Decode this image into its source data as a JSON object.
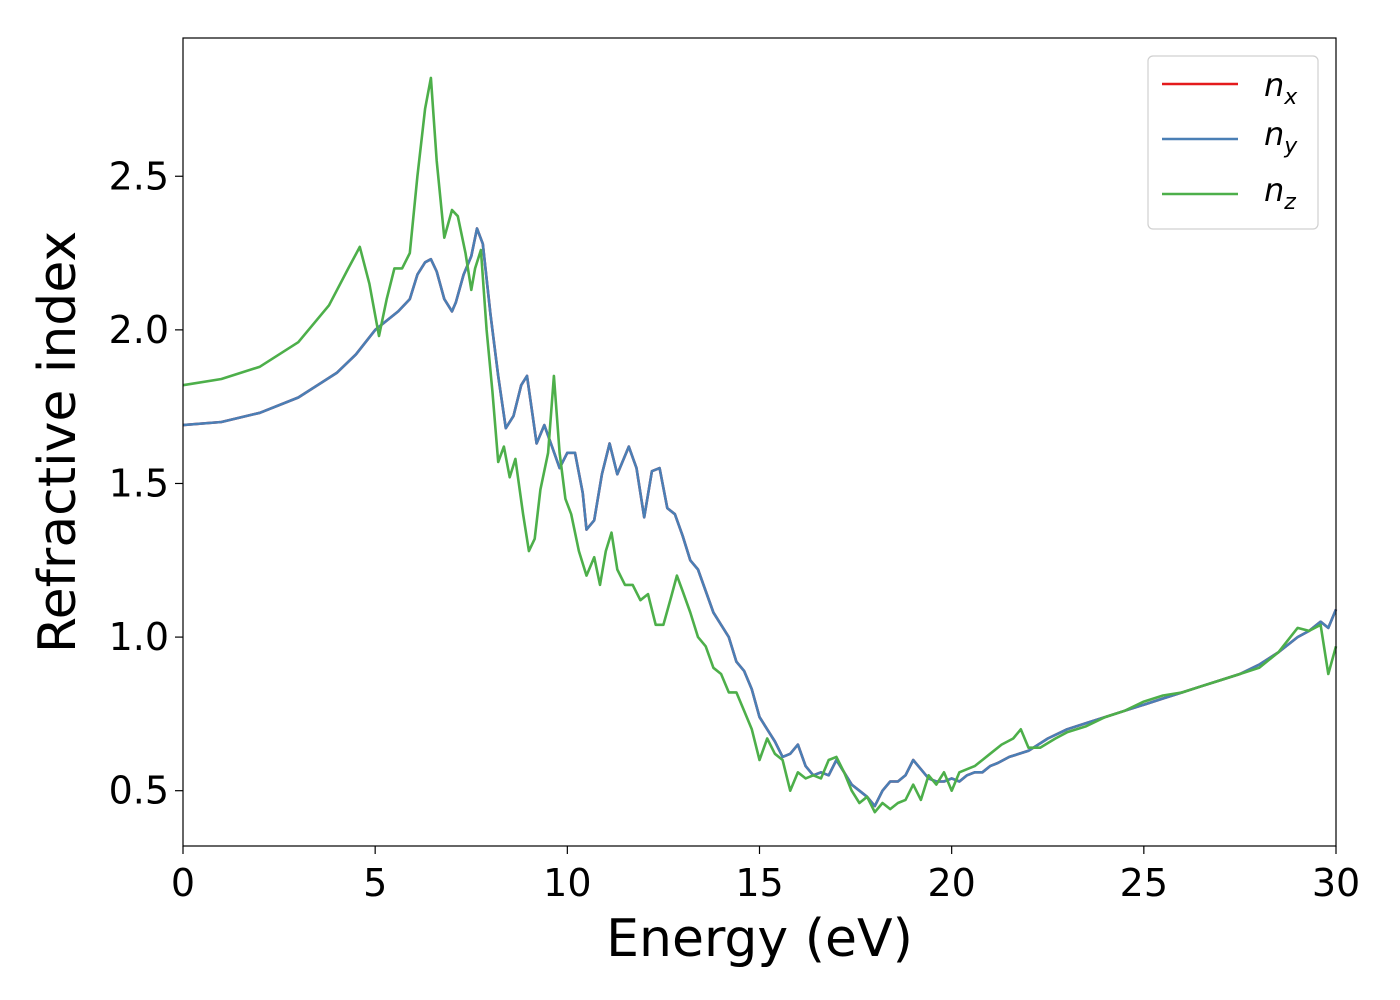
{
  "chart_data": {
    "type": "line",
    "title": "",
    "xlabel": "Energy (eV)",
    "ylabel": "Refractive index",
    "xlim": [
      0,
      30
    ],
    "ylim": [
      0.32,
      2.95
    ],
    "xticks": [
      0,
      5,
      10,
      15,
      20,
      25,
      30
    ],
    "yticks": [
      0.5,
      1.0,
      1.5,
      2.0,
      2.5
    ],
    "xtick_labels": [
      "0",
      "5",
      "10",
      "15",
      "20",
      "25",
      "30"
    ],
    "ytick_labels": [
      "0.5",
      "1.0",
      "1.5",
      "2.0",
      "2.5"
    ],
    "grid": false,
    "legend_position": "top-right",
    "legend": [
      {
        "base": "n",
        "sub": "x"
      },
      {
        "base": "n",
        "sub": "y"
      },
      {
        "base": "n",
        "sub": "z"
      }
    ],
    "series": [
      {
        "key": "nx",
        "color": "#e41a1c",
        "x": [
          0,
          1,
          2,
          3,
          4,
          4.5,
          5,
          5.3,
          5.6,
          5.9,
          6.1,
          6.3,
          6.45,
          6.6,
          6.8,
          7.0,
          7.1,
          7.3,
          7.5,
          7.65,
          7.8,
          8.0,
          8.2,
          8.4,
          8.6,
          8.8,
          8.95,
          9.1,
          9.2,
          9.4,
          9.6,
          9.8,
          10.0,
          10.2,
          10.4,
          10.5,
          10.7,
          10.9,
          11.1,
          11.3,
          11.6,
          11.8,
          12.0,
          12.2,
          12.4,
          12.6,
          12.8,
          13.0,
          13.2,
          13.4,
          13.6,
          13.8,
          14.0,
          14.2,
          14.4,
          14.6,
          14.8,
          15.0,
          15.2,
          15.4,
          15.6,
          15.8,
          16.0,
          16.2,
          16.4,
          16.6,
          16.8,
          17.0,
          17.2,
          17.4,
          17.6,
          17.8,
          18.0,
          18.2,
          18.4,
          18.6,
          18.8,
          19.0,
          19.2,
          19.4,
          19.6,
          19.8,
          20.0,
          20.2,
          20.4,
          20.6,
          20.8,
          21.0,
          21.2,
          21.5,
          22.0,
          22.5,
          23.0,
          23.5,
          24.0,
          24.5,
          25.0,
          25.5,
          26.0,
          26.5,
          27.0,
          27.5,
          28.0,
          28.5,
          29.0,
          29.3,
          29.6,
          29.8,
          30.0
        ],
        "y": [
          1.69,
          1.7,
          1.73,
          1.78,
          1.86,
          1.92,
          2.0,
          2.03,
          2.06,
          2.1,
          2.18,
          2.22,
          2.23,
          2.19,
          2.1,
          2.06,
          2.09,
          2.18,
          2.24,
          2.33,
          2.28,
          2.05,
          1.85,
          1.68,
          1.72,
          1.82,
          1.85,
          1.72,
          1.63,
          1.69,
          1.62,
          1.55,
          1.6,
          1.6,
          1.47,
          1.35,
          1.38,
          1.53,
          1.63,
          1.53,
          1.62,
          1.55,
          1.39,
          1.54,
          1.55,
          1.42,
          1.4,
          1.33,
          1.25,
          1.22,
          1.15,
          1.08,
          1.04,
          1.0,
          0.92,
          0.89,
          0.83,
          0.74,
          0.7,
          0.66,
          0.61,
          0.62,
          0.65,
          0.58,
          0.55,
          0.56,
          0.55,
          0.6,
          0.56,
          0.52,
          0.5,
          0.48,
          0.45,
          0.5,
          0.53,
          0.53,
          0.55,
          0.6,
          0.57,
          0.54,
          0.53,
          0.53,
          0.54,
          0.53,
          0.55,
          0.56,
          0.56,
          0.58,
          0.59,
          0.61,
          0.63,
          0.67,
          0.7,
          0.72,
          0.74,
          0.76,
          0.78,
          0.8,
          0.82,
          0.84,
          0.86,
          0.88,
          0.91,
          0.95,
          1.0,
          1.02,
          1.05,
          1.03,
          1.09
        ]
      },
      {
        "key": "ny",
        "color": "#4a7fb5",
        "x": [
          0,
          1,
          2,
          3,
          4,
          4.5,
          5,
          5.3,
          5.6,
          5.9,
          6.1,
          6.3,
          6.45,
          6.6,
          6.8,
          7.0,
          7.1,
          7.3,
          7.5,
          7.65,
          7.8,
          8.0,
          8.2,
          8.4,
          8.6,
          8.8,
          8.95,
          9.1,
          9.2,
          9.4,
          9.6,
          9.8,
          10.0,
          10.2,
          10.4,
          10.5,
          10.7,
          10.9,
          11.1,
          11.3,
          11.6,
          11.8,
          12.0,
          12.2,
          12.4,
          12.6,
          12.8,
          13.0,
          13.2,
          13.4,
          13.6,
          13.8,
          14.0,
          14.2,
          14.4,
          14.6,
          14.8,
          15.0,
          15.2,
          15.4,
          15.6,
          15.8,
          16.0,
          16.2,
          16.4,
          16.6,
          16.8,
          17.0,
          17.2,
          17.4,
          17.6,
          17.8,
          18.0,
          18.2,
          18.4,
          18.6,
          18.8,
          19.0,
          19.2,
          19.4,
          19.6,
          19.8,
          20.0,
          20.2,
          20.4,
          20.6,
          20.8,
          21.0,
          21.2,
          21.5,
          22.0,
          22.5,
          23.0,
          23.5,
          24.0,
          24.5,
          25.0,
          25.5,
          26.0,
          26.5,
          27.0,
          27.5,
          28.0,
          28.5,
          29.0,
          29.3,
          29.6,
          29.8,
          30.0
        ],
        "y": [
          1.69,
          1.7,
          1.73,
          1.78,
          1.86,
          1.92,
          2.0,
          2.03,
          2.06,
          2.1,
          2.18,
          2.22,
          2.23,
          2.19,
          2.1,
          2.06,
          2.09,
          2.18,
          2.24,
          2.33,
          2.28,
          2.05,
          1.85,
          1.68,
          1.72,
          1.82,
          1.85,
          1.72,
          1.63,
          1.69,
          1.62,
          1.55,
          1.6,
          1.6,
          1.47,
          1.35,
          1.38,
          1.53,
          1.63,
          1.53,
          1.62,
          1.55,
          1.39,
          1.54,
          1.55,
          1.42,
          1.4,
          1.33,
          1.25,
          1.22,
          1.15,
          1.08,
          1.04,
          1.0,
          0.92,
          0.89,
          0.83,
          0.74,
          0.7,
          0.66,
          0.61,
          0.62,
          0.65,
          0.58,
          0.55,
          0.56,
          0.55,
          0.6,
          0.56,
          0.52,
          0.5,
          0.48,
          0.45,
          0.5,
          0.53,
          0.53,
          0.55,
          0.6,
          0.57,
          0.54,
          0.53,
          0.53,
          0.54,
          0.53,
          0.55,
          0.56,
          0.56,
          0.58,
          0.59,
          0.61,
          0.63,
          0.67,
          0.7,
          0.72,
          0.74,
          0.76,
          0.78,
          0.8,
          0.82,
          0.84,
          0.86,
          0.88,
          0.91,
          0.95,
          1.0,
          1.02,
          1.05,
          1.03,
          1.09
        ]
      },
      {
        "key": "nz",
        "color": "#4daf4a",
        "x": [
          0,
          1,
          2,
          3,
          3.8,
          4.3,
          4.6,
          4.85,
          5.1,
          5.3,
          5.5,
          5.7,
          5.9,
          6.1,
          6.3,
          6.45,
          6.6,
          6.8,
          7.0,
          7.15,
          7.35,
          7.5,
          7.6,
          7.75,
          7.9,
          8.05,
          8.2,
          8.35,
          8.5,
          8.65,
          8.85,
          9.0,
          9.15,
          9.3,
          9.5,
          9.65,
          9.8,
          9.95,
          10.1,
          10.3,
          10.5,
          10.7,
          10.85,
          11.0,
          11.15,
          11.3,
          11.5,
          11.7,
          11.9,
          12.1,
          12.3,
          12.5,
          12.7,
          12.85,
          13.0,
          13.2,
          13.4,
          13.6,
          13.8,
          14.0,
          14.2,
          14.4,
          14.6,
          14.8,
          15.0,
          15.2,
          15.4,
          15.6,
          15.8,
          16.0,
          16.2,
          16.4,
          16.6,
          16.8,
          17.0,
          17.2,
          17.4,
          17.6,
          17.8,
          18.0,
          18.2,
          18.4,
          18.6,
          18.8,
          19.0,
          19.2,
          19.4,
          19.6,
          19.8,
          20.0,
          20.2,
          20.4,
          20.6,
          20.8,
          21.0,
          21.3,
          21.6,
          21.8,
          22.0,
          22.3,
          22.7,
          23.0,
          23.5,
          24.0,
          24.5,
          25.0,
          25.5,
          26.0,
          26.5,
          27.0,
          27.5,
          28.0,
          28.5,
          29.0,
          29.3,
          29.6,
          29.8,
          30.0
        ],
        "y": [
          1.82,
          1.84,
          1.88,
          1.96,
          2.08,
          2.2,
          2.27,
          2.15,
          1.98,
          2.1,
          2.2,
          2.2,
          2.25,
          2.5,
          2.72,
          2.82,
          2.55,
          2.3,
          2.39,
          2.37,
          2.25,
          2.13,
          2.2,
          2.26,
          2.0,
          1.8,
          1.57,
          1.62,
          1.52,
          1.58,
          1.4,
          1.28,
          1.32,
          1.48,
          1.6,
          1.85,
          1.6,
          1.45,
          1.4,
          1.28,
          1.2,
          1.26,
          1.17,
          1.28,
          1.34,
          1.22,
          1.17,
          1.17,
          1.12,
          1.14,
          1.04,
          1.04,
          1.13,
          1.2,
          1.15,
          1.08,
          1.0,
          0.97,
          0.9,
          0.88,
          0.82,
          0.82,
          0.76,
          0.7,
          0.6,
          0.67,
          0.62,
          0.6,
          0.5,
          0.56,
          0.54,
          0.55,
          0.54,
          0.6,
          0.61,
          0.56,
          0.5,
          0.46,
          0.48,
          0.43,
          0.46,
          0.44,
          0.46,
          0.47,
          0.52,
          0.47,
          0.55,
          0.52,
          0.56,
          0.5,
          0.56,
          0.57,
          0.58,
          0.6,
          0.62,
          0.65,
          0.67,
          0.7,
          0.64,
          0.64,
          0.67,
          0.69,
          0.71,
          0.74,
          0.76,
          0.79,
          0.81,
          0.82,
          0.84,
          0.86,
          0.88,
          0.9,
          0.95,
          1.03,
          1.02,
          1.04,
          0.88,
          0.97
        ]
      }
    ]
  }
}
